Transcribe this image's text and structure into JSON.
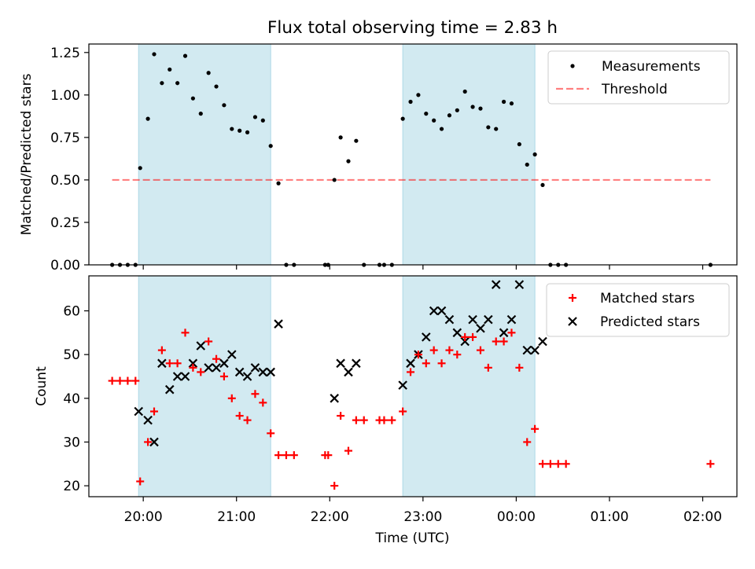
{
  "title": "Flux total observing time = 2.83 h",
  "colors": {
    "span": "#add8e6",
    "threshold": "#ff0000",
    "matched": "#ff0000",
    "predicted": "#000000",
    "measurement": "#000000"
  },
  "chart_data": [
    {
      "type": "scatter",
      "panel": "top",
      "ylabel": "Matched/Predicted stars",
      "ylim": [
        0,
        1.3
      ],
      "yticks": [
        "0.00",
        "0.25",
        "0.50",
        "0.75",
        "1.00",
        "1.25"
      ],
      "xlim": [
        "19:25",
        "02:22"
      ],
      "shaded_intervals": [
        [
          "19:57",
          "21:22"
        ],
        [
          "22:47",
          "00:12"
        ]
      ],
      "legend": {
        "position": "top-right",
        "entries": [
          "Measurements",
          "Threshold"
        ]
      },
      "threshold": {
        "name": "Threshold",
        "value": 0.5,
        "x_range": [
          "19:40",
          "02:05"
        ],
        "style": "dashed"
      },
      "series": [
        {
          "name": "Measurements",
          "points": [
            [
              "19:40",
              0.0
            ],
            [
              "19:45",
              0.0
            ],
            [
              "19:50",
              0.0
            ],
            [
              "19:55",
              0.0
            ],
            [
              "19:58",
              0.57
            ],
            [
              "20:03",
              0.86
            ],
            [
              "20:07",
              1.24
            ],
            [
              "20:12",
              1.07
            ],
            [
              "20:17",
              1.15
            ],
            [
              "20:22",
              1.07
            ],
            [
              "20:27",
              1.23
            ],
            [
              "20:32",
              0.98
            ],
            [
              "20:37",
              0.89
            ],
            [
              "20:42",
              1.13
            ],
            [
              "20:47",
              1.05
            ],
            [
              "20:52",
              0.94
            ],
            [
              "20:57",
              0.8
            ],
            [
              "21:02",
              0.79
            ],
            [
              "21:07",
              0.78
            ],
            [
              "21:12",
              0.87
            ],
            [
              "21:17",
              0.85
            ],
            [
              "21:22",
              0.7
            ],
            [
              "21:27",
              0.48
            ],
            [
              "21:32",
              0.0
            ],
            [
              "21:37",
              0.0
            ],
            [
              "21:57",
              0.0
            ],
            [
              "21:59",
              0.0
            ],
            [
              "22:03",
              0.5
            ],
            [
              "22:07",
              0.75
            ],
            [
              "22:12",
              0.61
            ],
            [
              "22:17",
              0.73
            ],
            [
              "22:22",
              0.0
            ],
            [
              "22:32",
              0.0
            ],
            [
              "22:35",
              0.0
            ],
            [
              "22:40",
              0.0
            ],
            [
              "22:47",
              0.86
            ],
            [
              "22:52",
              0.96
            ],
            [
              "22:57",
              1.0
            ],
            [
              "23:02",
              0.89
            ],
            [
              "23:07",
              0.85
            ],
            [
              "23:12",
              0.8
            ],
            [
              "23:17",
              0.88
            ],
            [
              "23:22",
              0.91
            ],
            [
              "23:27",
              1.02
            ],
            [
              "23:32",
              0.93
            ],
            [
              "23:37",
              0.92
            ],
            [
              "23:42",
              0.81
            ],
            [
              "23:47",
              0.8
            ],
            [
              "23:52",
              0.96
            ],
            [
              "23:57",
              0.95
            ],
            [
              "00:02",
              0.71
            ],
            [
              "00:07",
              0.59
            ],
            [
              "00:12",
              0.65
            ],
            [
              "00:17",
              0.47
            ],
            [
              "00:22",
              0.0
            ],
            [
              "00:27",
              0.0
            ],
            [
              "00:32",
              0.0
            ],
            [
              "02:05",
              0.0
            ]
          ]
        }
      ]
    },
    {
      "type": "scatter",
      "panel": "bottom",
      "xlabel": "Time (UTC)",
      "ylabel": "Count",
      "ylim": [
        17.5,
        68
      ],
      "yticks": [
        "20",
        "30",
        "40",
        "50",
        "60"
      ],
      "xlim": [
        "19:25",
        "02:22"
      ],
      "xticks": [
        "20:00",
        "21:00",
        "22:00",
        "23:00",
        "00:00",
        "01:00",
        "02:00"
      ],
      "shaded_intervals": [
        [
          "19:57",
          "21:22"
        ],
        [
          "22:47",
          "00:12"
        ]
      ],
      "legend": {
        "position": "top-right",
        "entries": [
          "Matched stars",
          "Predicted stars"
        ]
      },
      "series": [
        {
          "name": "Matched stars",
          "marker": "+",
          "points": [
            [
              "19:40",
              44
            ],
            [
              "19:45",
              44
            ],
            [
              "19:50",
              44
            ],
            [
              "19:55",
              44
            ],
            [
              "19:58",
              21
            ],
            [
              "20:03",
              30
            ],
            [
              "20:07",
              37
            ],
            [
              "20:12",
              51
            ],
            [
              "20:17",
              48
            ],
            [
              "20:22",
              48
            ],
            [
              "20:27",
              55
            ],
            [
              "20:32",
              47
            ],
            [
              "20:37",
              46
            ],
            [
              "20:42",
              53
            ],
            [
              "20:47",
              49
            ],
            [
              "20:52",
              45
            ],
            [
              "20:57",
              40
            ],
            [
              "21:02",
              36
            ],
            [
              "21:07",
              35
            ],
            [
              "21:12",
              41
            ],
            [
              "21:17",
              39
            ],
            [
              "21:22",
              32
            ],
            [
              "21:27",
              27
            ],
            [
              "21:32",
              27
            ],
            [
              "21:37",
              27
            ],
            [
              "21:57",
              27
            ],
            [
              "21:59",
              27
            ],
            [
              "22:03",
              20
            ],
            [
              "22:07",
              36
            ],
            [
              "22:12",
              28
            ],
            [
              "22:17",
              35
            ],
            [
              "22:22",
              35
            ],
            [
              "22:32",
              35
            ],
            [
              "22:35",
              35
            ],
            [
              "22:40",
              35
            ],
            [
              "22:47",
              37
            ],
            [
              "22:52",
              46
            ],
            [
              "22:57",
              50
            ],
            [
              "23:02",
              48
            ],
            [
              "23:07",
              51
            ],
            [
              "23:12",
              48
            ],
            [
              "23:17",
              51
            ],
            [
              "23:22",
              50
            ],
            [
              "23:27",
              54
            ],
            [
              "23:32",
              54
            ],
            [
              "23:37",
              51
            ],
            [
              "23:42",
              47
            ],
            [
              "23:47",
              53
            ],
            [
              "23:52",
              53
            ],
            [
              "23:57",
              55
            ],
            [
              "00:02",
              47
            ],
            [
              "00:07",
              30
            ],
            [
              "00:12",
              33
            ],
            [
              "00:17",
              25
            ],
            [
              "00:22",
              25
            ],
            [
              "00:27",
              25
            ],
            [
              "00:32",
              25
            ],
            [
              "02:05",
              25
            ]
          ]
        },
        {
          "name": "Predicted stars",
          "marker": "x",
          "points": [
            [
              "19:57",
              37
            ],
            [
              "20:03",
              35
            ],
            [
              "20:07",
              30
            ],
            [
              "20:12",
              48
            ],
            [
              "20:17",
              42
            ],
            [
              "20:22",
              45
            ],
            [
              "20:27",
              45
            ],
            [
              "20:32",
              48
            ],
            [
              "20:37",
              52
            ],
            [
              "20:42",
              47
            ],
            [
              "20:47",
              47
            ],
            [
              "20:52",
              48
            ],
            [
              "20:57",
              50
            ],
            [
              "21:02",
              46
            ],
            [
              "21:07",
              45
            ],
            [
              "21:12",
              47
            ],
            [
              "21:17",
              46
            ],
            [
              "21:22",
              46
            ],
            [
              "21:27",
              57
            ],
            [
              "22:03",
              40
            ],
            [
              "22:07",
              48
            ],
            [
              "22:12",
              46
            ],
            [
              "22:17",
              48
            ],
            [
              "22:47",
              43
            ],
            [
              "22:52",
              48
            ],
            [
              "22:57",
              50
            ],
            [
              "23:02",
              54
            ],
            [
              "23:07",
              60
            ],
            [
              "23:12",
              60
            ],
            [
              "23:17",
              58
            ],
            [
              "23:22",
              55
            ],
            [
              "23:27",
              53
            ],
            [
              "23:32",
              58
            ],
            [
              "23:37",
              56
            ],
            [
              "23:42",
              58
            ],
            [
              "23:47",
              66
            ],
            [
              "23:52",
              55
            ],
            [
              "23:57",
              58
            ],
            [
              "00:02",
              66
            ],
            [
              "00:07",
              51
            ],
            [
              "00:12",
              51
            ],
            [
              "00:17",
              53
            ]
          ]
        }
      ]
    }
  ]
}
